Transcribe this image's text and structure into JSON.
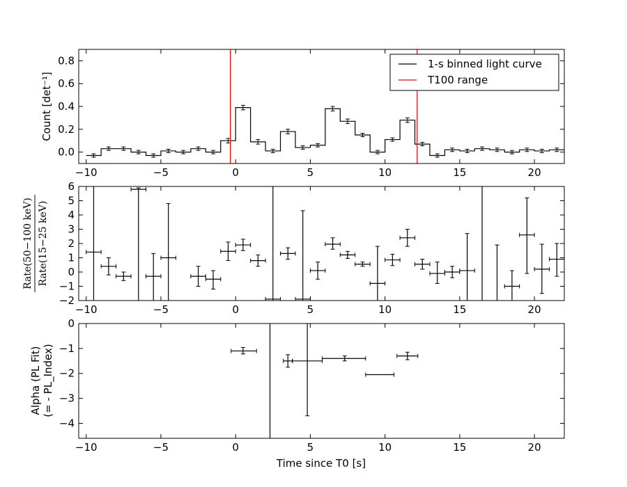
{
  "chart_data": [
    {
      "type": "line",
      "panel": "top",
      "ylabel": "Count [det⁻¹]",
      "xlim": [
        -10.5,
        22
      ],
      "ylim": [
        -0.1,
        0.9
      ],
      "yticks": [
        0.0,
        0.2,
        0.4,
        0.6,
        0.8
      ],
      "ytick_labels": [
        "0.0",
        "0.2",
        "0.4",
        "0.6",
        "0.8"
      ],
      "xticks": [
        -10,
        -5,
        0,
        5,
        10,
        15,
        20
      ],
      "xtick_labels": [
        "−10",
        "−5",
        "0",
        "5",
        "10",
        "15",
        "20"
      ],
      "legend": {
        "position": "top-right",
        "entries": [
          {
            "label": "1-s binned light curve",
            "color": "#000000"
          },
          {
            "label": "T100 range",
            "color": "#ff0000"
          }
        ]
      },
      "vlines": [
        {
          "x": -0.35,
          "color": "#ff0000"
        },
        {
          "x": 12.15,
          "color": "#ff0000"
        }
      ],
      "series": [
        {
          "step": true,
          "x": [
            -9.5,
            -8.5,
            -7.5,
            -6.5,
            -5.5,
            -4.5,
            -3.5,
            -2.5,
            -1.5,
            -0.5,
            0.5,
            1.5,
            2.5,
            3.5,
            4.5,
            5.5,
            6.5,
            7.5,
            8.5,
            9.5,
            10.5,
            11.5,
            12.5,
            13.5,
            14.5,
            15.5,
            16.5,
            17.5,
            18.5,
            19.5,
            20.5,
            21.5
          ],
          "y": [
            -0.03,
            0.03,
            0.03,
            0.0,
            -0.03,
            0.01,
            0.0,
            0.03,
            0.0,
            0.1,
            0.39,
            0.09,
            0.01,
            0.18,
            0.04,
            0.06,
            0.38,
            0.27,
            0.15,
            0.0,
            0.11,
            0.28,
            0.07,
            -0.03,
            0.02,
            0.01,
            0.03,
            0.02,
            0.0,
            0.02,
            0.01,
            0.02
          ],
          "yerr": [
            0.015,
            0.015,
            0.015,
            0.015,
            0.015,
            0.015,
            0.015,
            0.015,
            0.015,
            0.02,
            0.02,
            0.02,
            0.015,
            0.02,
            0.015,
            0.015,
            0.02,
            0.02,
            0.015,
            0.015,
            0.015,
            0.02,
            0.015,
            0.015,
            0.015,
            0.015,
            0.015,
            0.015,
            0.015,
            0.015,
            0.015,
            0.015
          ]
        }
      ]
    },
    {
      "type": "scatter",
      "panel": "middle",
      "ylabel_numerator": "Rate(50−100 keV)",
      "ylabel_denominator": "Rate(15−25 keV)",
      "xlim": [
        -10.5,
        22
      ],
      "ylim": [
        -2,
        6
      ],
      "yticks": [
        -2,
        -1,
        0,
        1,
        2,
        3,
        4,
        5,
        6
      ],
      "ytick_labels": [
        "−2",
        "−1",
        "0",
        "1",
        "2",
        "3",
        "4",
        "5",
        "6"
      ],
      "xticks": [
        -10,
        -5,
        0,
        5,
        10,
        15,
        20
      ],
      "xtick_labels": [
        "−10",
        "−5",
        "0",
        "5",
        "10",
        "15",
        "20"
      ],
      "points": [
        {
          "x": -9.5,
          "y": 1.4,
          "ylo": -2.5,
          "yhi": 6.5
        },
        {
          "x": -8.5,
          "y": 0.4,
          "ylo": -0.2,
          "yhi": 1.0
        },
        {
          "x": -7.5,
          "y": -0.3,
          "ylo": -0.6,
          "yhi": 0.0
        },
        {
          "x": -6.5,
          "y": 5.8,
          "ylo": -2.5,
          "yhi": 5.9
        },
        {
          "x": -5.5,
          "y": -0.3,
          "ylo": -2.0,
          "yhi": 1.3
        },
        {
          "x": -4.5,
          "y": 1.0,
          "ylo": -2.5,
          "yhi": 4.8
        },
        {
          "x": -2.5,
          "y": -0.3,
          "ylo": -1.0,
          "yhi": 0.4
        },
        {
          "x": -1.5,
          "y": -0.5,
          "ylo": -1.2,
          "yhi": 0.1
        },
        {
          "x": -0.5,
          "y": 1.45,
          "ylo": 0.8,
          "yhi": 2.1
        },
        {
          "x": 0.5,
          "y": 1.9,
          "ylo": 1.5,
          "yhi": 2.3
        },
        {
          "x": 1.5,
          "y": 0.8,
          "ylo": 0.4,
          "yhi": 1.2
        },
        {
          "x": 2.5,
          "y": -1.9,
          "ylo": -2.5,
          "yhi": 6.5
        },
        {
          "x": 3.5,
          "y": 1.3,
          "ylo": 0.9,
          "yhi": 1.7
        },
        {
          "x": 4.5,
          "y": -1.9,
          "ylo": -2.5,
          "yhi": 4.3
        },
        {
          "x": 5.5,
          "y": 0.1,
          "ylo": -0.5,
          "yhi": 0.7
        },
        {
          "x": 6.5,
          "y": 1.95,
          "ylo": 1.6,
          "yhi": 2.4
        },
        {
          "x": 7.5,
          "y": 1.2,
          "ylo": 0.95,
          "yhi": 1.45
        },
        {
          "x": 8.5,
          "y": 0.55,
          "ylo": 0.4,
          "yhi": 0.7
        },
        {
          "x": 9.5,
          "y": -0.8,
          "ylo": -2.5,
          "yhi": 1.8
        },
        {
          "x": 10.5,
          "y": 0.85,
          "ylo": 0.45,
          "yhi": 1.25
        },
        {
          "x": 11.5,
          "y": 2.4,
          "ylo": 1.8,
          "yhi": 3.0
        },
        {
          "x": 12.5,
          "y": 0.55,
          "ylo": 0.2,
          "yhi": 0.9
        },
        {
          "x": 13.5,
          "y": -0.1,
          "ylo": -0.8,
          "yhi": 0.7
        },
        {
          "x": 14.5,
          "y": 0.0,
          "ylo": -0.4,
          "yhi": 0.4
        },
        {
          "x": 15.5,
          "y": 0.1,
          "ylo": -2.5,
          "yhi": 2.7
        },
        {
          "x": 16.5,
          "y": -2.5,
          "ylo": -2.5,
          "yhi": 6.5
        },
        {
          "x": 17.5,
          "y": -2.5,
          "ylo": -2.5,
          "yhi": 1.9
        },
        {
          "x": 18.5,
          "y": -1.0,
          "ylo": -2.5,
          "yhi": 0.1
        },
        {
          "x": 19.5,
          "y": 2.6,
          "ylo": -0.1,
          "yhi": 5.2
        },
        {
          "x": 20.5,
          "y": 0.2,
          "ylo": -1.5,
          "yhi": 1.95
        },
        {
          "x": 21.5,
          "y": 0.9,
          "ylo": -0.3,
          "yhi": 2.0
        },
        {
          "x": 22.5,
          "y": 1.4,
          "ylo": 1.1,
          "yhi": 1.7
        }
      ],
      "xerr": 0.5
    },
    {
      "type": "scatter",
      "panel": "bottom",
      "xlabel": "Time since T0 [s]",
      "ylabel_line1": "Alpha (PL Fit)",
      "ylabel_line2": "(= - PL_Index)",
      "xlim": [
        -10.5,
        22
      ],
      "ylim": [
        -4.6,
        0
      ],
      "yticks": [
        0,
        -1,
        -2,
        -3,
        -4
      ],
      "ytick_labels": [
        "0",
        "−1",
        "−2",
        "−3",
        "−4"
      ],
      "xticks": [
        -10,
        -5,
        0,
        5,
        10,
        15,
        20
      ],
      "xtick_labels": [
        "−10",
        "−5",
        "0",
        "5",
        "10",
        "15",
        "20"
      ],
      "points": [
        {
          "x": 0.5,
          "y": -1.1,
          "xlo": -0.3,
          "xhi": 1.4,
          "ylo": -1.22,
          "yhi": -0.96
        },
        {
          "x": 2.3,
          "y": -5.0,
          "xlo": 2.3,
          "xhi": 2.3,
          "ylo": -5.0,
          "yhi": 0.0
        },
        {
          "x": 3.5,
          "y": -1.5,
          "xlo": 3.2,
          "xhi": 3.8,
          "ylo": -1.75,
          "yhi": -1.25
        },
        {
          "x": 4.8,
          "y": -1.5,
          "xlo": 3.8,
          "xhi": 5.8,
          "ylo": -3.7,
          "yhi": 0.0
        },
        {
          "x": 7.3,
          "y": -1.4,
          "xlo": 5.8,
          "xhi": 8.7,
          "ylo": -1.5,
          "yhi": -1.3
        },
        {
          "x": 9.6,
          "y": -2.05,
          "xlo": 8.7,
          "xhi": 10.6,
          "ylo": -2.05,
          "yhi": -2.05
        },
        {
          "x": 11.5,
          "y": -1.3,
          "xlo": 10.8,
          "xhi": 12.2,
          "ylo": -1.45,
          "yhi": -1.15
        }
      ]
    }
  ]
}
